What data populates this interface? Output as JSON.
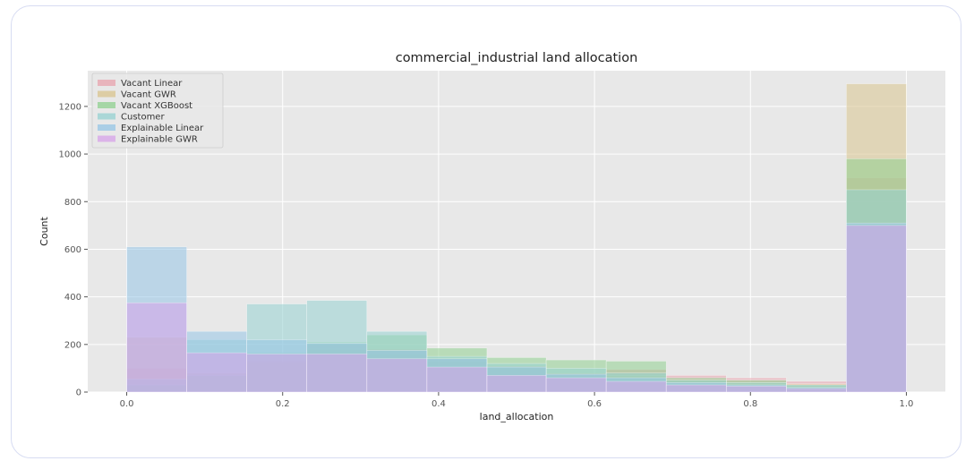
{
  "chart_data": {
    "type": "bar",
    "title": "commercial_industrial land allocation",
    "xlabel": "land_allocation",
    "ylabel": "Count",
    "xlim": [
      -0.05,
      1.05
    ],
    "ylim": [
      0,
      1350
    ],
    "xticks": [
      0.0,
      0.2,
      0.4,
      0.6,
      0.8,
      1.0
    ],
    "xtick_labels": [
      "0.0",
      "0.2",
      "0.4",
      "0.6",
      "0.8",
      "1.0"
    ],
    "yticks": [
      0,
      200,
      400,
      600,
      800,
      1000,
      1200
    ],
    "ytick_labels": [
      "0",
      "200",
      "400",
      "600",
      "800",
      "1000",
      "1200"
    ],
    "grid": true,
    "legend_position": "upper-left",
    "bin_edges": [
      0.0,
      0.077,
      0.154,
      0.231,
      0.308,
      0.385,
      0.462,
      0.538,
      0.615,
      0.692,
      0.769,
      0.846,
      0.923,
      1.0
    ],
    "series": [
      {
        "name": "Vacant Linear",
        "color": "#e8a3ad",
        "values": [
          100,
          75,
          120,
          200,
          180,
          140,
          110,
          80,
          95,
          70,
          60,
          45,
          900
        ]
      },
      {
        "name": "Vacant GWR",
        "color": "#d9c48e",
        "values": [
          230,
          80,
          130,
          180,
          160,
          130,
          105,
          70,
          70,
          50,
          40,
          35,
          1295
        ]
      },
      {
        "name": "Vacant XGBoost",
        "color": "#8fd08f",
        "values": [
          30,
          70,
          165,
          210,
          240,
          185,
          145,
          135,
          130,
          60,
          50,
          30,
          980
        ]
      },
      {
        "name": "Customer",
        "color": "#96d1d1",
        "values": [
          55,
          220,
          370,
          385,
          255,
          150,
          120,
          100,
          80,
          50,
          40,
          30,
          850
        ]
      },
      {
        "name": "Explainable Linear",
        "color": "#96c5e6",
        "values": [
          610,
          255,
          220,
          205,
          175,
          140,
          105,
          75,
          60,
          40,
          30,
          20,
          710
        ]
      },
      {
        "name": "Explainable GWR",
        "color": "#d7a3ea",
        "values": [
          375,
          165,
          160,
          160,
          140,
          105,
          70,
          60,
          45,
          30,
          25,
          15,
          700
        ]
      }
    ]
  }
}
